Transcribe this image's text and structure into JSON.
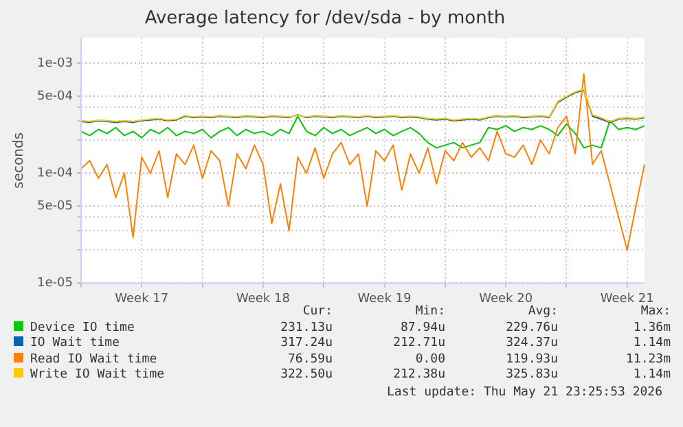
{
  "chart_data": {
    "type": "line",
    "title": "Average latency for /dev/sda - by month",
    "ylabel": "seconds",
    "categories": [
      null,
      null,
      null,
      null,
      null,
      null,
      null,
      "Week 17",
      null,
      null,
      null,
      null,
      null,
      null,
      null,
      null,
      null,
      null,
      null,
      null,
      null,
      "Week 18",
      null,
      null,
      null,
      null,
      null,
      null,
      null,
      null,
      null,
      null,
      null,
      null,
      null,
      "Week 19",
      null,
      null,
      null,
      null,
      null,
      null,
      null,
      null,
      null,
      null,
      null,
      null,
      null,
      "Week 20",
      null,
      null,
      null,
      null,
      null,
      null,
      null,
      null,
      null,
      null,
      null,
      null,
      null,
      "Week 21",
      null,
      null
    ],
    "series": [
      {
        "name": "Device IO time",
        "color": "#00cc00",
        "values": [
          0.00024,
          0.00022,
          0.00025,
          0.00023,
          0.00026,
          0.00022,
          0.00024,
          0.00021,
          0.00025,
          0.00023,
          0.00026,
          0.00022,
          0.00024,
          0.00023,
          0.00025,
          0.00021,
          0.00024,
          0.00026,
          0.00022,
          0.00025,
          0.00023,
          0.00024,
          0.00022,
          0.00025,
          0.00023,
          0.00033,
          0.00024,
          0.00022,
          0.00026,
          0.00023,
          0.00025,
          0.00022,
          0.00024,
          0.00026,
          0.00023,
          0.00025,
          0.00022,
          0.00024,
          0.00026,
          0.00023,
          0.00019,
          0.00017,
          0.00018,
          0.00019,
          0.00017,
          0.00018,
          0.00019,
          0.00026,
          0.00025,
          0.00027,
          0.00024,
          0.00026,
          0.00025,
          0.00027,
          0.00025,
          0.00022,
          0.00028,
          0.00023,
          0.00017,
          0.00018,
          0.00017,
          0.0003,
          0.00025,
          0.00026,
          0.00025,
          0.00027
        ]
      },
      {
        "name": "IO Wait time",
        "color": "#0066b3",
        "values": [
          0.000295,
          0.00029,
          0.0003,
          0.000295,
          0.00029,
          0.000295,
          0.00029,
          0.0003,
          0.000305,
          0.00031,
          0.0003,
          0.000305,
          0.00033,
          0.00032,
          0.000325,
          0.00032,
          0.00033,
          0.000325,
          0.00032,
          0.00033,
          0.000325,
          0.00032,
          0.00033,
          0.000325,
          0.00032,
          0.00034,
          0.00032,
          0.00033,
          0.000325,
          0.00032,
          0.00033,
          0.000325,
          0.00032,
          0.00033,
          0.00032,
          0.000325,
          0.00033,
          0.00032,
          0.000325,
          0.00032,
          0.00031,
          0.000305,
          0.00031,
          0.0003,
          0.000305,
          0.00031,
          0.000305,
          0.00032,
          0.00033,
          0.000325,
          0.00033,
          0.00032,
          0.000325,
          0.00033,
          0.00032,
          0.00044,
          0.00049,
          0.00054,
          0.00057,
          0.00033,
          0.00031,
          0.00029,
          0.00031,
          0.000315,
          0.00031,
          0.00032
        ]
      },
      {
        "name": "Read IO Wait time",
        "color": "#ff8000",
        "values": [
          0.00011,
          0.00013,
          9e-05,
          0.00012,
          6e-05,
          0.0001,
          2.6e-05,
          0.00014,
          0.0001,
          0.00016,
          6e-05,
          0.00015,
          0.00012,
          0.00018,
          9e-05,
          0.00016,
          0.00013,
          5e-05,
          0.00015,
          0.00011,
          0.00018,
          0.00012,
          3.5e-05,
          8e-05,
          3e-05,
          0.00014,
          0.0001,
          0.00017,
          9e-05,
          0.00015,
          0.00019,
          0.00012,
          0.00015,
          5e-05,
          0.00016,
          0.00013,
          0.00018,
          7e-05,
          0.00015,
          0.0001,
          0.00017,
          8e-05,
          0.00016,
          0.00013,
          0.00019,
          0.00014,
          0.00017,
          0.00013,
          0.00024,
          0.00015,
          0.00014,
          0.00018,
          0.00012,
          0.0002,
          0.00015,
          0.00026,
          0.00033,
          0.00015,
          0.0008,
          0.00012,
          0.00016,
          8e-05,
          4e-05,
          2e-05,
          5e-05,
          0.00012
        ]
      },
      {
        "name": "Write IO Wait time",
        "color": "#ffcc00",
        "values": [
          0.0003,
          0.000295,
          0.000305,
          0.0003,
          0.000295,
          0.0003,
          0.000295,
          0.000305,
          0.00031,
          0.000315,
          0.000305,
          0.00031,
          0.000335,
          0.000325,
          0.00033,
          0.000325,
          0.000335,
          0.00033,
          0.000325,
          0.000335,
          0.00033,
          0.000325,
          0.000335,
          0.00033,
          0.000325,
          0.000335,
          0.000325,
          0.000335,
          0.00033,
          0.000325,
          0.000335,
          0.00033,
          0.000325,
          0.000335,
          0.000325,
          0.00033,
          0.000335,
          0.000325,
          0.00033,
          0.000325,
          0.000315,
          0.00031,
          0.000315,
          0.000305,
          0.00031,
          0.000315,
          0.00031,
          0.000325,
          0.000335,
          0.00033,
          0.000335,
          0.000325,
          0.00033,
          0.000335,
          0.000325,
          0.00045,
          0.0005,
          0.00055,
          0.00058,
          0.00034,
          0.00032,
          0.000295,
          0.000315,
          0.00032,
          0.000315,
          0.000325
        ]
      }
    ],
    "ylim": [
      1e-05,
      0.0017
    ],
    "yticks": [
      {
        "value": 1e-05,
        "label": "1e-05"
      },
      {
        "value": 2e-05,
        "label": null
      },
      {
        "value": 3e-05,
        "label": null
      },
      {
        "value": 4e-05,
        "label": null
      },
      {
        "value": 5e-05,
        "label": "5e-05"
      },
      {
        "value": 0.0001,
        "label": "1e-04"
      },
      {
        "value": 0.0002,
        "label": null
      },
      {
        "value": 0.0003,
        "label": null
      },
      {
        "value": 0.0004,
        "label": null
      },
      {
        "value": 0.0005,
        "label": "5e-04"
      },
      {
        "value": 0.001,
        "label": "1e-03"
      }
    ],
    "log": "y",
    "grid": true,
    "legend": "bottom",
    "marker": "none",
    "line_style": "solid",
    "annotations": [
      "Cur:",
      "Min:",
      "Avg:",
      "Max:",
      "231.13u",
      "87.94u",
      "229.76u",
      "1.36m",
      "317.24u",
      "212.71u",
      "324.37u",
      "1.14m",
      "76.59u",
      "0.00",
      "119.93u",
      "11.23m",
      "322.50u",
      "212.38u",
      "325.83u",
      "1.14m",
      "Last update: Thu May 21 23:25:53 2026"
    ]
  }
}
